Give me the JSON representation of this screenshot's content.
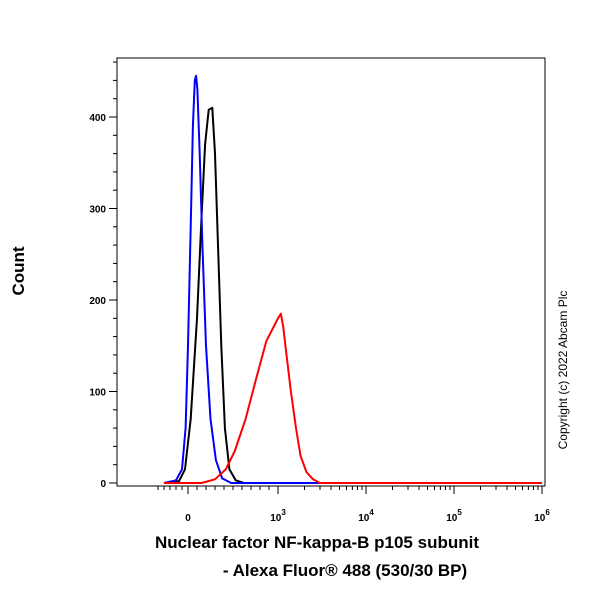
{
  "chart_data": {
    "type": "line",
    "title": "",
    "xlabel_line1": "Nuclear factor NF-kappa-B p105 subunit",
    "xlabel_line2": "- Alexa Fluor® 488 (530/30 BP)",
    "ylabel": "Count",
    "ylim": [
      0,
      480
    ],
    "xscale": "biexponential",
    "y_ticks": [
      {
        "value": 0,
        "label": "0"
      },
      {
        "value": 100,
        "label": "100"
      },
      {
        "value": 200,
        "label": "200"
      },
      {
        "value": 300,
        "label": "300"
      },
      {
        "value": 400,
        "label": "400"
      }
    ],
    "x_ticks": [
      {
        "label": "0",
        "exp": ""
      },
      {
        "label": "10",
        "exp": "3"
      },
      {
        "label": "10",
        "exp": "4"
      },
      {
        "label": "10",
        "exp": "5"
      },
      {
        "label": "10",
        "exp": "6"
      }
    ],
    "series": [
      {
        "name": "black-unlabelled-control",
        "color": "#000000",
        "points": [
          [
            -400,
            0
          ],
          [
            -150,
            2
          ],
          [
            -50,
            15
          ],
          [
            30,
            70
          ],
          [
            100,
            180
          ],
          [
            150,
            290
          ],
          [
            190,
            370
          ],
          [
            230,
            408
          ],
          [
            270,
            410
          ],
          [
            300,
            360
          ],
          [
            330,
            270
          ],
          [
            370,
            150
          ],
          [
            410,
            60
          ],
          [
            460,
            15
          ],
          [
            530,
            3
          ],
          [
            620,
            0
          ],
          [
            1000000,
            0
          ]
        ]
      },
      {
        "name": "blue-isotype-control",
        "color": "#0000ff",
        "points": [
          [
            -400,
            0
          ],
          [
            -200,
            3
          ],
          [
            -100,
            15
          ],
          [
            -40,
            60
          ],
          [
            0,
            150
          ],
          [
            30,
            280
          ],
          [
            55,
            390
          ],
          [
            75,
            440
          ],
          [
            90,
            445
          ],
          [
            105,
            430
          ],
          [
            130,
            360
          ],
          [
            160,
            260
          ],
          [
            200,
            150
          ],
          [
            250,
            70
          ],
          [
            310,
            25
          ],
          [
            380,
            5
          ],
          [
            480,
            0
          ],
          [
            1000000,
            0
          ]
        ]
      },
      {
        "name": "red-nfkb-p105-alexa488",
        "color": "#ff0000",
        "points": [
          [
            -400,
            0
          ],
          [
            150,
            0
          ],
          [
            300,
            4
          ],
          [
            420,
            15
          ],
          [
            520,
            35
          ],
          [
            640,
            70
          ],
          [
            760,
            115
          ],
          [
            870,
            155
          ],
          [
            1000,
            180
          ],
          [
            1080,
            185
          ],
          [
            1150,
            170
          ],
          [
            1250,
            140
          ],
          [
            1400,
            100
          ],
          [
            1600,
            60
          ],
          [
            1800,
            30
          ],
          [
            2100,
            12
          ],
          [
            2500,
            4
          ],
          [
            3000,
            0
          ],
          [
            1000000,
            0
          ]
        ]
      }
    ],
    "legend": "none",
    "grid": false,
    "copyright": "Copyright (c) 2022 Abcam Plc"
  }
}
